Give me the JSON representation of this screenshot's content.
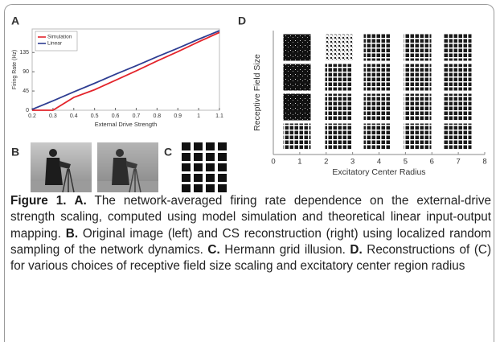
{
  "chart_data": [
    {
      "type": "line",
      "panel": "A",
      "xlabel": "External Drive Strength",
      "ylabel": "Firing Rate (Hz)",
      "x": [
        0.2,
        0.3,
        0.4,
        0.5,
        0.6,
        0.7,
        0.8,
        0.9,
        1.0,
        1.1
      ],
      "series": [
        {
          "name": "Simulation",
          "color": "#e3242b",
          "values": [
            0,
            0,
            30,
            48,
            70,
            92,
            115,
            137,
            160,
            182
          ]
        },
        {
          "name": "Linear",
          "color": "#2e3d92",
          "values": [
            2,
            22,
            43,
            63,
            84,
            104,
            125,
            145,
            166,
            186
          ]
        }
      ],
      "xlim": [
        0.2,
        1.1
      ],
      "xticks": [
        0.2,
        0.3,
        0.4,
        0.5,
        0.6,
        0.7,
        0.8,
        0.9,
        1,
        1.1
      ],
      "ylim": [
        0,
        190
      ],
      "yticks": [
        0,
        45,
        90,
        135
      ],
      "legend": "top-left"
    },
    {
      "type": "image-grid",
      "panel": "D",
      "xlabel": "Excitatory Center Radius",
      "ylabel": "Receptive Field Size",
      "xlim": [
        0,
        8
      ],
      "xticks": [
        0,
        1,
        2,
        3,
        4,
        5,
        6,
        7,
        8
      ]
    }
  ],
  "figure": {
    "panel_labels": [
      "A",
      "B",
      "C",
      "D"
    ],
    "caption": {
      "title": "Figure 1.",
      "parts": [
        {
          "label": "A.",
          "text": "The network-averaged firing rate dependence on the external-drive strength scaling, computed using model simulation and theoretical linear input-output mapping."
        },
        {
          "label": "B.",
          "text": "Original image (left) and CS reconstruction (right) using localized random sampling of the network dynamics."
        },
        {
          "label": "C.",
          "text": "Hermann grid illusion."
        },
        {
          "label": "D.",
          "text": "Reconstructions of (C) for various choices of receptive field size scaling and excitatory center region radius"
        }
      ]
    }
  }
}
